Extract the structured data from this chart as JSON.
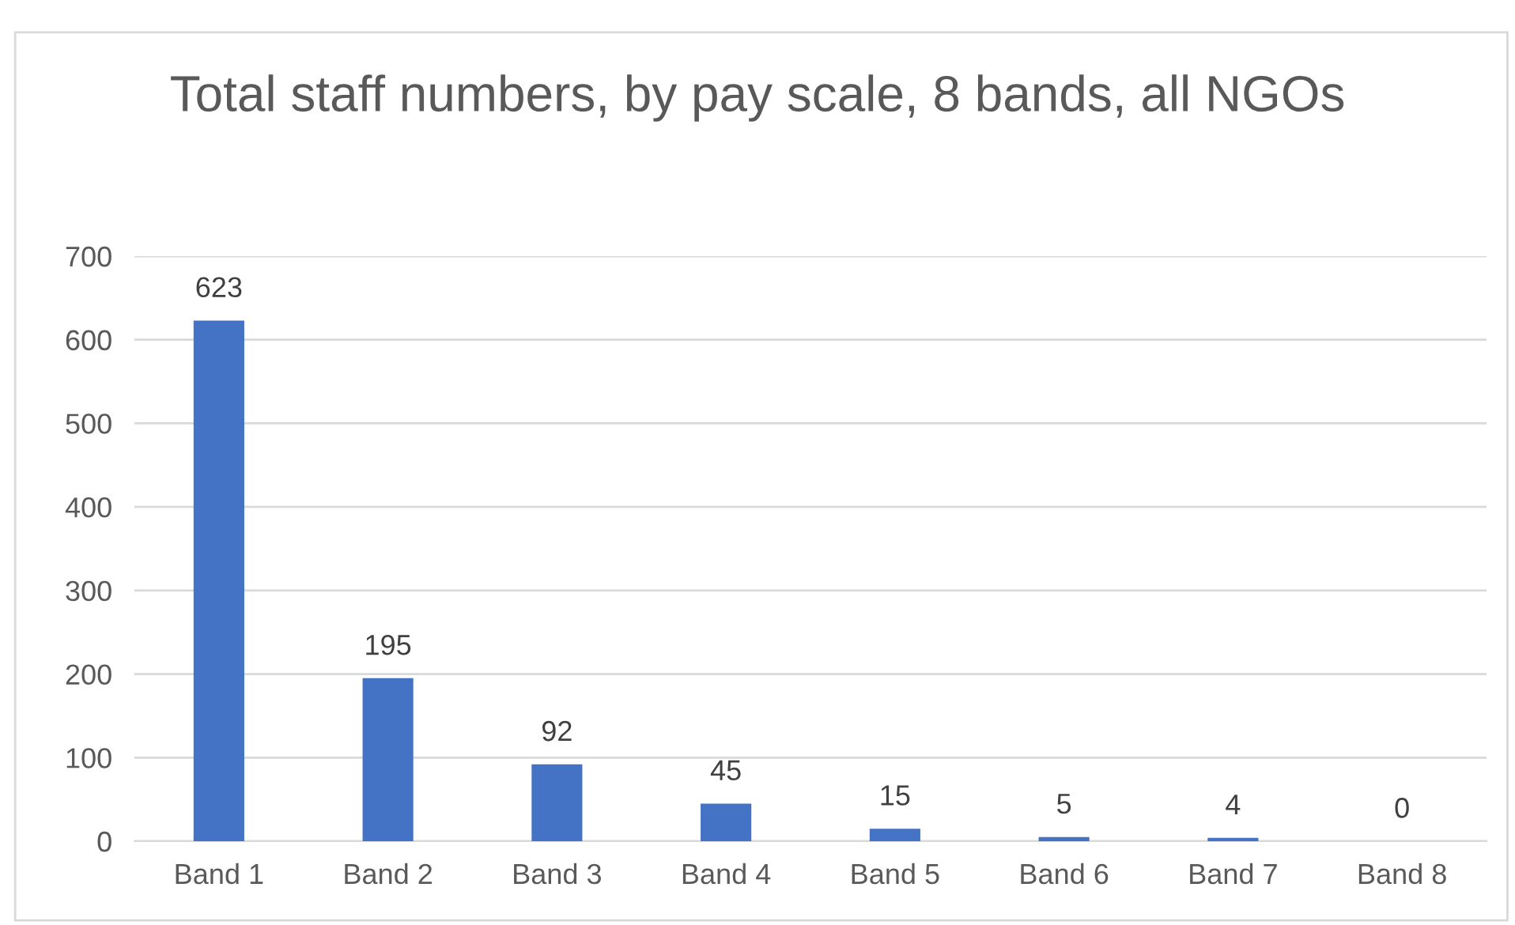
{
  "chart_data": {
    "type": "bar",
    "title": "Total staff numbers, by pay scale, 8 bands, all NGOs",
    "categories": [
      "Band 1",
      "Band 2",
      "Band 3",
      "Band 4",
      "Band 5",
      "Band 6",
      "Band 7",
      "Band 8"
    ],
    "values": [
      623,
      195,
      92,
      45,
      15,
      5,
      4,
      0
    ],
    "color": "#4472c4",
    "ylim": [
      0,
      700
    ],
    "yticks": [
      0,
      100,
      200,
      300,
      400,
      500,
      600,
      700
    ],
    "grid": "y",
    "data_labels": true
  }
}
